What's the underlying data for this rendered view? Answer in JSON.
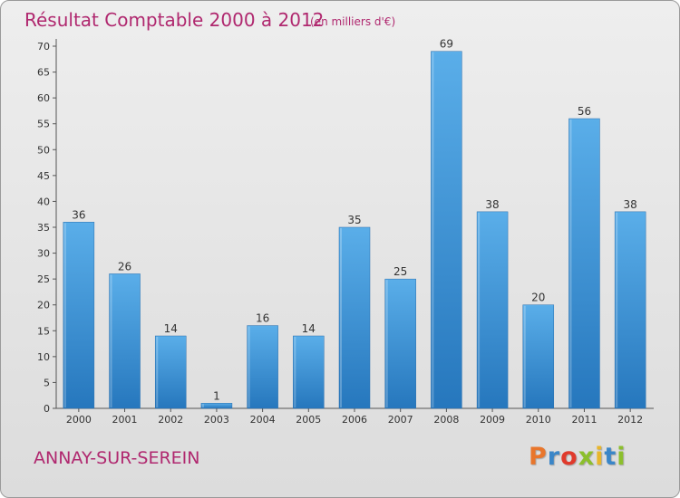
{
  "header": {
    "title": "Résultat Comptable 2000 à 2012",
    "unit": "(en milliers d'€)"
  },
  "footer": {
    "commune": "ANNAY-SUR-SEREIN",
    "logo_text": "Proxiti",
    "logo_colors": [
      "#e8762c",
      "#3a86c8",
      "#e03a2c",
      "#8cbf2c",
      "#e8b62c",
      "#3a86c8",
      "#8cbf2c"
    ]
  },
  "chart_data": {
    "type": "bar",
    "title": "Résultat Comptable 2000 à 2012",
    "subtitle": "(en milliers d'€)",
    "categories": [
      "2000",
      "2001",
      "2002",
      "2003",
      "2004",
      "2005",
      "2006",
      "2007",
      "2008",
      "2009",
      "2010",
      "2011",
      "2012"
    ],
    "values": [
      36,
      26,
      14,
      1,
      16,
      14,
      35,
      25,
      69,
      38,
      20,
      56,
      38
    ],
    "xlabel": "",
    "ylabel": "",
    "ylim": [
      0,
      70
    ],
    "yticks": [
      0,
      5,
      10,
      15,
      20,
      25,
      30,
      35,
      40,
      45,
      50,
      55,
      60,
      65,
      70
    ],
    "grid": false,
    "bar_color": "#3b8fd6"
  }
}
